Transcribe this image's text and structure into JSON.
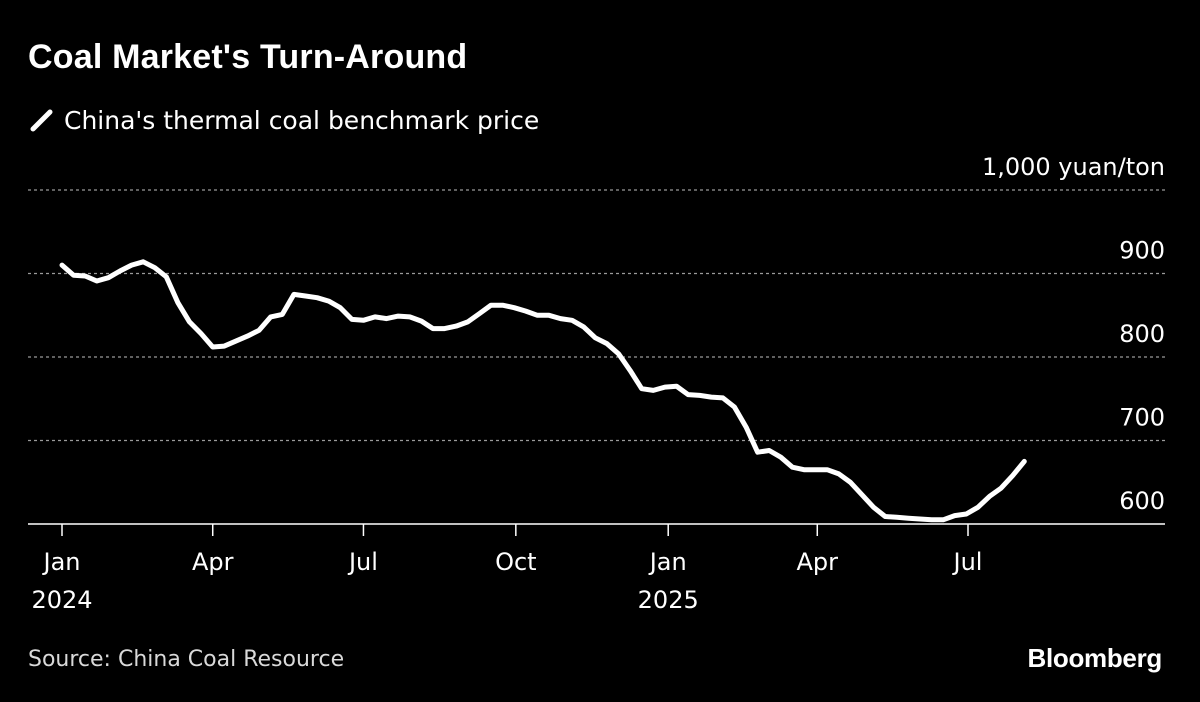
{
  "title": "Coal Market's Turn-Around",
  "legend_label": "China's thermal coal benchmark price",
  "unit_label": "1,000 yuan/ton",
  "source": "Source: China Coal Resource",
  "brand": "Bloomberg",
  "colors": {
    "background": "#000000",
    "line": "#ffffff",
    "grid": "#9a9a9a",
    "text": "#ffffff"
  },
  "chart_data": {
    "type": "line",
    "title": "Coal Market's Turn-Around",
    "ylabel": "1,000 yuan/ton",
    "ylim": [
      575,
      1000
    ],
    "y_ticks": [
      {
        "value": 1000,
        "label": "1,000 yuan/ton"
      },
      {
        "value": 900,
        "label": "900"
      },
      {
        "value": 800,
        "label": "800"
      },
      {
        "value": 700,
        "label": "700"
      },
      {
        "value": 600,
        "label": "600"
      }
    ],
    "x_ticks": [
      {
        "date": "2024-01-01",
        "label": "Jan",
        "sublabel": "2024"
      },
      {
        "date": "2024-04-01",
        "label": "Apr",
        "sublabel": ""
      },
      {
        "date": "2024-07-01",
        "label": "Jul",
        "sublabel": ""
      },
      {
        "date": "2024-10-01",
        "label": "Oct",
        "sublabel": ""
      },
      {
        "date": "2025-01-01",
        "label": "Jan",
        "sublabel": "2025"
      },
      {
        "date": "2025-04-01",
        "label": "Apr",
        "sublabel": ""
      },
      {
        "date": "2025-07-01",
        "label": "Jul",
        "sublabel": ""
      }
    ],
    "grid": true,
    "legend_position": "top-left",
    "series": [
      {
        "name": "China's thermal coal benchmark price",
        "color": "#ffffff",
        "points": [
          [
            "2024-01-01",
            910
          ],
          [
            "2024-01-08",
            898
          ],
          [
            "2024-01-15",
            897
          ],
          [
            "2024-01-22",
            891
          ],
          [
            "2024-01-29",
            895
          ],
          [
            "2024-02-05",
            903
          ],
          [
            "2024-02-12",
            910
          ],
          [
            "2024-02-19",
            914
          ],
          [
            "2024-02-26",
            907
          ],
          [
            "2024-03-04",
            896
          ],
          [
            "2024-03-11",
            865
          ],
          [
            "2024-03-18",
            842
          ],
          [
            "2024-03-25",
            828
          ],
          [
            "2024-04-01",
            812
          ],
          [
            "2024-04-08",
            813
          ],
          [
            "2024-04-15",
            819
          ],
          [
            "2024-04-22",
            825
          ],
          [
            "2024-04-29",
            832
          ],
          [
            "2024-05-06",
            848
          ],
          [
            "2024-05-13",
            851
          ],
          [
            "2024-05-20",
            875
          ],
          [
            "2024-05-27",
            873
          ],
          [
            "2024-06-03",
            871
          ],
          [
            "2024-06-10",
            867
          ],
          [
            "2024-06-17",
            859
          ],
          [
            "2024-06-24",
            845
          ],
          [
            "2024-07-01",
            844
          ],
          [
            "2024-07-08",
            848
          ],
          [
            "2024-07-15",
            846
          ],
          [
            "2024-07-22",
            849
          ],
          [
            "2024-07-29",
            848
          ],
          [
            "2024-08-05",
            843
          ],
          [
            "2024-08-12",
            834
          ],
          [
            "2024-08-19",
            834
          ],
          [
            "2024-08-26",
            837
          ],
          [
            "2024-09-02",
            842
          ],
          [
            "2024-09-09",
            852
          ],
          [
            "2024-09-16",
            862
          ],
          [
            "2024-09-23",
            862
          ],
          [
            "2024-09-30",
            859
          ],
          [
            "2024-10-07",
            855
          ],
          [
            "2024-10-14",
            850
          ],
          [
            "2024-10-21",
            850
          ],
          [
            "2024-10-28",
            846
          ],
          [
            "2024-11-04",
            844
          ],
          [
            "2024-11-11",
            836
          ],
          [
            "2024-11-18",
            823
          ],
          [
            "2024-11-25",
            816
          ],
          [
            "2024-12-02",
            804
          ],
          [
            "2024-12-09",
            784
          ],
          [
            "2024-12-16",
            762
          ],
          [
            "2024-12-23",
            760
          ],
          [
            "2024-12-30",
            764
          ],
          [
            "2025-01-06",
            765
          ],
          [
            "2025-01-13",
            755
          ],
          [
            "2025-01-20",
            754
          ],
          [
            "2025-01-27",
            752
          ],
          [
            "2025-02-03",
            751
          ],
          [
            "2025-02-10",
            740
          ],
          [
            "2025-02-17",
            716
          ],
          [
            "2025-02-24",
            686
          ],
          [
            "2025-03-03",
            688
          ],
          [
            "2025-03-10",
            680
          ],
          [
            "2025-03-17",
            668
          ],
          [
            "2025-03-24",
            665
          ],
          [
            "2025-03-31",
            665
          ],
          [
            "2025-04-07",
            665
          ],
          [
            "2025-04-14",
            660
          ],
          [
            "2025-04-21",
            650
          ],
          [
            "2025-04-28",
            635
          ],
          [
            "2025-05-05",
            620
          ],
          [
            "2025-05-12",
            609
          ],
          [
            "2025-05-19",
            608
          ],
          [
            "2025-05-26",
            607
          ],
          [
            "2025-06-02",
            606
          ],
          [
            "2025-06-09",
            605
          ],
          [
            "2025-06-16",
            605
          ],
          [
            "2025-06-23",
            610
          ],
          [
            "2025-06-30",
            612
          ],
          [
            "2025-07-07",
            620
          ],
          [
            "2025-07-14",
            633
          ],
          [
            "2025-07-21",
            643
          ],
          [
            "2025-07-28",
            658
          ],
          [
            "2025-08-04",
            675
          ]
        ]
      }
    ]
  }
}
